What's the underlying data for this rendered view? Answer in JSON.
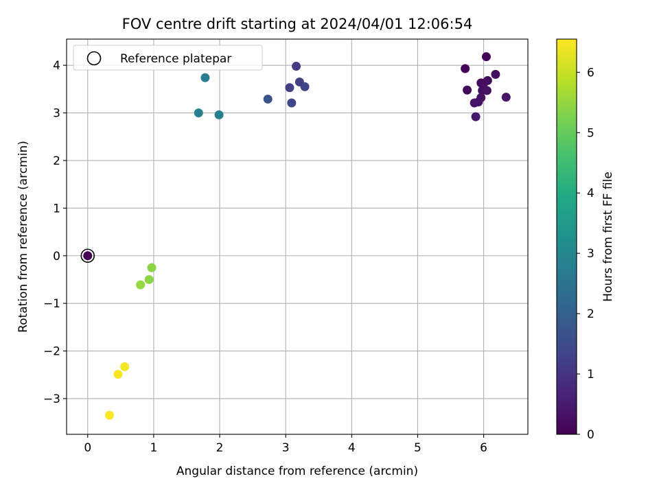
{
  "chart_data": {
    "type": "scatter",
    "title": "FOV centre drift starting at 2024/04/01 12:06:54",
    "xlabel": "Angular distance from reference (arcmin)",
    "ylabel": "Rotation from reference (arcmin)",
    "xlim": [
      -0.32,
      6.67
    ],
    "ylim": [
      -3.75,
      4.55
    ],
    "xticks": [
      0,
      1,
      2,
      3,
      4,
      5,
      6
    ],
    "yticks": [
      -3,
      -2,
      -1,
      0,
      1,
      2,
      3,
      4
    ],
    "xtick_labels": [
      "0",
      "1",
      "2",
      "3",
      "4",
      "5",
      "6"
    ],
    "ytick_labels": [
      "−3",
      "−2",
      "−1",
      "0",
      "1",
      "2",
      "3",
      "4"
    ],
    "grid": true,
    "legend": {
      "position": "top-left",
      "entries": [
        "Reference platepar"
      ]
    },
    "reference_point": {
      "x": 0,
      "y": 0
    },
    "colorbar": {
      "label": "Hours from first FF file",
      "colormap": "viridis",
      "range": [
        0,
        6.55
      ],
      "ticks": [
        0,
        1,
        2,
        3,
        4,
        5,
        6
      ],
      "tick_labels": [
        "0",
        "1",
        "2",
        "3",
        "4",
        "5",
        "6"
      ]
    },
    "points": [
      {
        "x": 0.0,
        "y": 0.0,
        "c": 0.0
      },
      {
        "x": 5.72,
        "y": 3.93,
        "c": 0.1
      },
      {
        "x": 6.04,
        "y": 4.18,
        "c": 0.12
      },
      {
        "x": 5.75,
        "y": 3.48,
        "c": 0.15
      },
      {
        "x": 5.96,
        "y": 3.63,
        "c": 0.18
      },
      {
        "x": 6.06,
        "y": 3.68,
        "c": 0.2
      },
      {
        "x": 6.18,
        "y": 3.81,
        "c": 0.22
      },
      {
        "x": 6.0,
        "y": 3.62,
        "c": 0.25
      },
      {
        "x": 5.98,
        "y": 3.47,
        "c": 0.28
      },
      {
        "x": 6.05,
        "y": 3.47,
        "c": 0.3
      },
      {
        "x": 5.96,
        "y": 3.32,
        "c": 0.32
      },
      {
        "x": 5.92,
        "y": 3.23,
        "c": 0.35
      },
      {
        "x": 5.86,
        "y": 3.21,
        "c": 0.38
      },
      {
        "x": 6.34,
        "y": 3.33,
        "c": 0.4
      },
      {
        "x": 5.88,
        "y": 2.92,
        "c": 0.45
      },
      {
        "x": 3.16,
        "y": 3.98,
        "c": 1.15
      },
      {
        "x": 3.06,
        "y": 3.53,
        "c": 1.2
      },
      {
        "x": 3.21,
        "y": 3.65,
        "c": 1.25
      },
      {
        "x": 3.29,
        "y": 3.55,
        "c": 1.3
      },
      {
        "x": 3.09,
        "y": 3.21,
        "c": 1.35
      },
      {
        "x": 2.73,
        "y": 3.29,
        "c": 1.65
      },
      {
        "x": 1.78,
        "y": 3.74,
        "c": 2.75
      },
      {
        "x": 1.68,
        "y": 3.0,
        "c": 2.8
      },
      {
        "x": 1.99,
        "y": 2.96,
        "c": 2.85
      },
      {
        "x": 0.97,
        "y": -0.25,
        "c": 5.4
      },
      {
        "x": 0.93,
        "y": -0.5,
        "c": 5.45
      },
      {
        "x": 0.8,
        "y": -0.61,
        "c": 5.5
      },
      {
        "x": 0.56,
        "y": -2.33,
        "c": 6.45
      },
      {
        "x": 0.46,
        "y": -2.49,
        "c": 6.5
      },
      {
        "x": 0.33,
        "y": -3.35,
        "c": 6.55
      }
    ]
  }
}
